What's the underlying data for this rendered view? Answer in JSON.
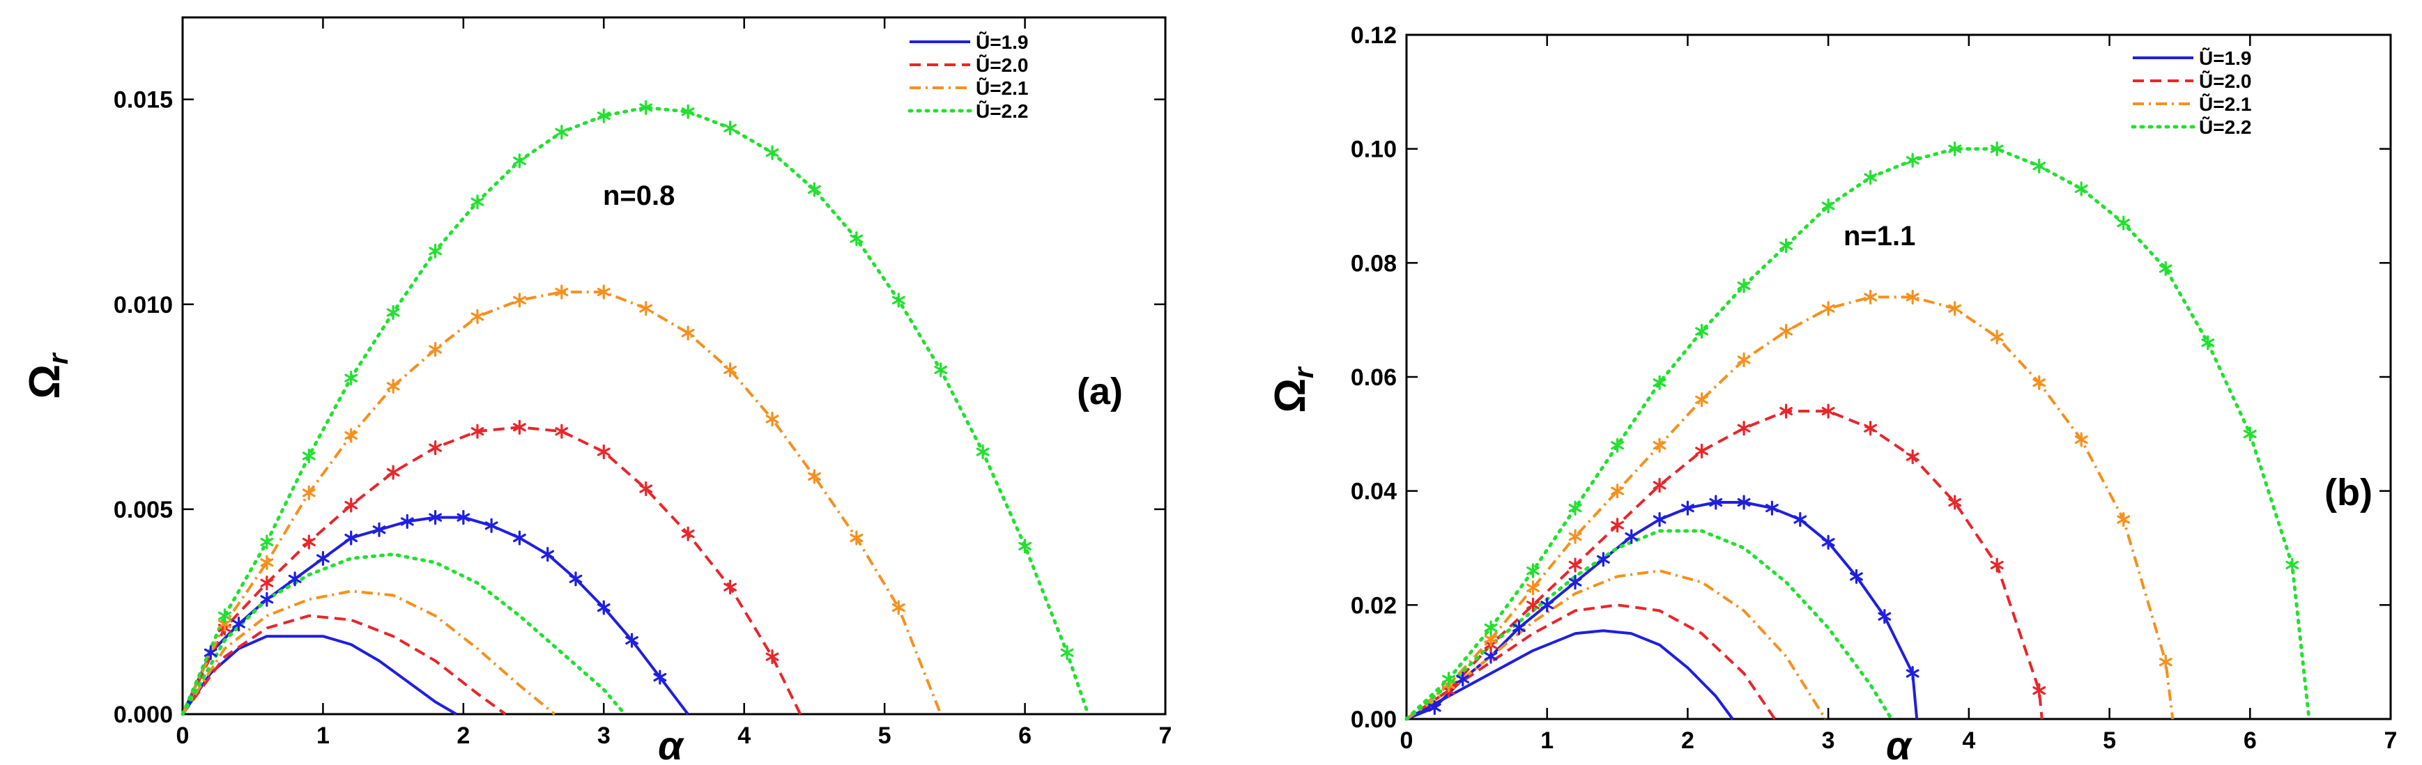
{
  "chart_data": [
    {
      "type": "line",
      "panel_label": "(a)",
      "annotation": "n=0.8",
      "xlabel": "α",
      "ylabel": "Ω",
      "ylabel_sub": "r",
      "xlim": [
        0,
        7
      ],
      "ylim": [
        0,
        0.017
      ],
      "xticks": [
        0,
        1,
        2,
        3,
        4,
        5,
        6,
        7
      ],
      "yticks": [
        0.0,
        0.005,
        0.01,
        0.015
      ],
      "ytick_labels": [
        "0.000",
        "0.005",
        "0.010",
        "0.015"
      ],
      "legend": [
        {
          "label": "Ũ=1.9",
          "color": "#1f1fe0",
          "style": "solid"
        },
        {
          "label": "Ũ=2.0",
          "color": "#e8262b",
          "style": "dashed"
        },
        {
          "label": "Ũ=2.1",
          "color": "#f5901e",
          "style": "dashdot"
        },
        {
          "label": "Ũ=2.2",
          "color": "#22e030",
          "style": "dotted"
        }
      ],
      "series": [
        {
          "name": "Ũ=1.9 upper",
          "color": "#1f1fe0",
          "style": "solid",
          "markers": true,
          "x": [
            0.0,
            0.2,
            0.4,
            0.6,
            0.8,
            1.0,
            1.2,
            1.4,
            1.6,
            1.8,
            2.0,
            2.2,
            2.4,
            2.6,
            2.8,
            3.0,
            3.2,
            3.4,
            3.6
          ],
          "y": [
            0.0,
            0.0015,
            0.0022,
            0.0028,
            0.0033,
            0.0038,
            0.0043,
            0.0045,
            0.0047,
            0.0048,
            0.0048,
            0.0046,
            0.0043,
            0.0039,
            0.0033,
            0.0026,
            0.0018,
            0.0009,
            0.0
          ]
        },
        {
          "name": "Ũ=2.0 upper",
          "color": "#e8262b",
          "style": "dashed",
          "markers": true,
          "x": [
            0.0,
            0.3,
            0.6,
            0.9,
            1.2,
            1.5,
            1.8,
            2.1,
            2.4,
            2.7,
            3.0,
            3.3,
            3.6,
            3.9,
            4.2,
            4.4
          ],
          "y": [
            0.0,
            0.0021,
            0.0032,
            0.0042,
            0.0051,
            0.0059,
            0.0065,
            0.0069,
            0.007,
            0.0069,
            0.0064,
            0.0055,
            0.0044,
            0.0031,
            0.0014,
            0.0
          ]
        },
        {
          "name": "Ũ=2.1 upper",
          "color": "#f5901e",
          "style": "dashdot",
          "markers": true,
          "x": [
            0.0,
            0.3,
            0.6,
            0.9,
            1.2,
            1.5,
            1.8,
            2.1,
            2.4,
            2.7,
            3.0,
            3.3,
            3.6,
            3.9,
            4.2,
            4.5,
            4.8,
            5.1,
            5.4
          ],
          "y": [
            0.0,
            0.0022,
            0.0037,
            0.0054,
            0.0068,
            0.008,
            0.0089,
            0.0097,
            0.0101,
            0.0103,
            0.0103,
            0.0099,
            0.0093,
            0.0084,
            0.0072,
            0.0058,
            0.0043,
            0.0026,
            0.0
          ]
        },
        {
          "name": "Ũ=2.2 upper",
          "color": "#22e030",
          "style": "dotted",
          "markers": true,
          "x": [
            0.0,
            0.3,
            0.6,
            0.9,
            1.2,
            1.5,
            1.8,
            2.1,
            2.4,
            2.7,
            3.0,
            3.3,
            3.6,
            3.9,
            4.2,
            4.5,
            4.8,
            5.1,
            5.4,
            5.7,
            6.0,
            6.3,
            6.45
          ],
          "y": [
            0.0,
            0.0024,
            0.0042,
            0.0063,
            0.0082,
            0.0098,
            0.0113,
            0.0125,
            0.0135,
            0.0142,
            0.0146,
            0.0148,
            0.0147,
            0.0143,
            0.0137,
            0.0128,
            0.0116,
            0.0101,
            0.0084,
            0.0064,
            0.0041,
            0.0015,
            0.0
          ]
        },
        {
          "name": "Ũ=1.9 lower",
          "color": "#1f1fe0",
          "style": "solid",
          "markers": false,
          "x": [
            0.0,
            0.2,
            0.4,
            0.6,
            0.8,
            1.0,
            1.2,
            1.4,
            1.6,
            1.8,
            1.95
          ],
          "y": [
            0.0,
            0.001,
            0.0016,
            0.0019,
            0.0019,
            0.0019,
            0.0017,
            0.0013,
            0.0008,
            0.0003,
            0.0
          ]
        },
        {
          "name": "Ũ=2.0 lower",
          "color": "#e8262b",
          "style": "dashed",
          "markers": false,
          "x": [
            0.0,
            0.3,
            0.6,
            0.9,
            1.2,
            1.5,
            1.8,
            2.1,
            2.3
          ],
          "y": [
            0.0,
            0.0014,
            0.0021,
            0.0024,
            0.0023,
            0.0019,
            0.0013,
            0.0005,
            0.0
          ]
        },
        {
          "name": "Ũ=2.1 lower",
          "color": "#f5901e",
          "style": "dashdot",
          "markers": false,
          "x": [
            0.0,
            0.3,
            0.6,
            0.9,
            1.2,
            1.5,
            1.8,
            2.1,
            2.4,
            2.65
          ],
          "y": [
            0.0,
            0.0016,
            0.0024,
            0.0028,
            0.003,
            0.0029,
            0.0024,
            0.0016,
            0.0007,
            0.0
          ]
        },
        {
          "name": "Ũ=2.2 lower",
          "color": "#22e030",
          "style": "dotted",
          "markers": false,
          "x": [
            0.0,
            0.3,
            0.6,
            0.9,
            1.2,
            1.5,
            1.8,
            2.1,
            2.4,
            2.7,
            3.0,
            3.15
          ],
          "y": [
            0.0,
            0.0018,
            0.0028,
            0.0034,
            0.0038,
            0.0039,
            0.0037,
            0.0032,
            0.0024,
            0.0015,
            0.0006,
            0.0
          ]
        }
      ]
    },
    {
      "type": "line",
      "panel_label": "(b)",
      "annotation": "n=1.1",
      "xlabel": "α",
      "ylabel": "Ω",
      "ylabel_sub": "r",
      "xlim": [
        0,
        7
      ],
      "ylim": [
        0,
        0.12
      ],
      "xticks": [
        0,
        1,
        2,
        3,
        4,
        5,
        6,
        7
      ],
      "yticks": [
        0.0,
        0.02,
        0.04,
        0.06,
        0.08,
        0.1,
        0.12
      ],
      "ytick_labels": [
        "0.00",
        "0.02",
        "0.04",
        "0.06",
        "0.08",
        "0.10",
        "0.12"
      ],
      "legend": [
        {
          "label": "Ũ=1.9",
          "color": "#1f1fe0",
          "style": "solid"
        },
        {
          "label": "Ũ=2.0",
          "color": "#e8262b",
          "style": "dashed"
        },
        {
          "label": "Ũ=2.1",
          "color": "#f5901e",
          "style": "dashdot"
        },
        {
          "label": "Ũ=2.2",
          "color": "#22e030",
          "style": "dotted"
        }
      ],
      "series": [
        {
          "name": "Ũ=1.9 upper",
          "color": "#1f1fe0",
          "style": "solid",
          "markers": true,
          "x": [
            0.0,
            0.2,
            0.4,
            0.6,
            0.8,
            1.0,
            1.2,
            1.4,
            1.6,
            1.8,
            2.0,
            2.2,
            2.4,
            2.6,
            2.8,
            3.0,
            3.2,
            3.4,
            3.6,
            3.63
          ],
          "y": [
            0.0,
            0.002,
            0.007,
            0.011,
            0.016,
            0.02,
            0.024,
            0.028,
            0.032,
            0.035,
            0.037,
            0.038,
            0.038,
            0.037,
            0.035,
            0.031,
            0.025,
            0.018,
            0.008,
            0.0
          ]
        },
        {
          "name": "Ũ=2.0 upper",
          "color": "#e8262b",
          "style": "dashed",
          "markers": true,
          "x": [
            0.0,
            0.3,
            0.6,
            0.9,
            1.2,
            1.5,
            1.8,
            2.1,
            2.4,
            2.7,
            3.0,
            3.3,
            3.6,
            3.9,
            4.2,
            4.5,
            4.52
          ],
          "y": [
            0.0,
            0.005,
            0.013,
            0.02,
            0.027,
            0.034,
            0.041,
            0.047,
            0.051,
            0.054,
            0.054,
            0.051,
            0.046,
            0.038,
            0.027,
            0.005,
            0.0
          ]
        },
        {
          "name": "Ũ=2.1 upper",
          "color": "#f5901e",
          "style": "dashdot",
          "markers": true,
          "x": [
            0.0,
            0.3,
            0.6,
            0.9,
            1.2,
            1.5,
            1.8,
            2.1,
            2.4,
            2.7,
            3.0,
            3.3,
            3.6,
            3.9,
            4.2,
            4.5,
            4.8,
            5.1,
            5.4,
            5.45
          ],
          "y": [
            0.0,
            0.006,
            0.014,
            0.023,
            0.032,
            0.04,
            0.048,
            0.056,
            0.063,
            0.068,
            0.072,
            0.074,
            0.074,
            0.072,
            0.067,
            0.059,
            0.049,
            0.035,
            0.01,
            0.0
          ]
        },
        {
          "name": "Ũ=2.2 upper",
          "color": "#22e030",
          "style": "dotted",
          "markers": true,
          "x": [
            0.0,
            0.3,
            0.6,
            0.9,
            1.2,
            1.5,
            1.8,
            2.1,
            2.4,
            2.7,
            3.0,
            3.3,
            3.6,
            3.9,
            4.2,
            4.5,
            4.8,
            5.1,
            5.4,
            5.7,
            6.0,
            6.3,
            6.42
          ],
          "y": [
            0.0,
            0.007,
            0.016,
            0.026,
            0.037,
            0.048,
            0.059,
            0.068,
            0.076,
            0.083,
            0.09,
            0.095,
            0.098,
            0.1,
            0.1,
            0.097,
            0.093,
            0.087,
            0.079,
            0.066,
            0.05,
            0.027,
            0.0
          ]
        },
        {
          "name": "Ũ=1.9 lower",
          "color": "#1f1fe0",
          "style": "solid",
          "markers": false,
          "x": [
            0.0,
            0.3,
            0.6,
            0.9,
            1.2,
            1.4,
            1.6,
            1.8,
            2.0,
            2.2,
            2.32
          ],
          "y": [
            0.0,
            0.004,
            0.008,
            0.012,
            0.015,
            0.0155,
            0.015,
            0.013,
            0.009,
            0.004,
            0.0
          ]
        },
        {
          "name": "Ũ=2.0 lower",
          "color": "#e8262b",
          "style": "dashed",
          "markers": false,
          "x": [
            0.0,
            0.3,
            0.6,
            0.9,
            1.2,
            1.5,
            1.8,
            2.1,
            2.4,
            2.62
          ],
          "y": [
            0.0,
            0.005,
            0.01,
            0.015,
            0.019,
            0.02,
            0.019,
            0.015,
            0.008,
            0.0
          ]
        },
        {
          "name": "Ũ=2.1 lower",
          "color": "#f5901e",
          "style": "dashdot",
          "markers": false,
          "x": [
            0.0,
            0.3,
            0.6,
            0.9,
            1.2,
            1.5,
            1.8,
            2.1,
            2.4,
            2.7,
            2.98
          ],
          "y": [
            0.0,
            0.005,
            0.011,
            0.017,
            0.022,
            0.025,
            0.026,
            0.024,
            0.019,
            0.011,
            0.0
          ]
        },
        {
          "name": "Ũ=2.2 lower",
          "color": "#22e030",
          "style": "dotted",
          "markers": false,
          "x": [
            0.0,
            0.3,
            0.6,
            0.9,
            1.2,
            1.5,
            1.8,
            2.1,
            2.4,
            2.7,
            3.0,
            3.3,
            3.45
          ],
          "y": [
            0.0,
            0.006,
            0.013,
            0.019,
            0.025,
            0.03,
            0.033,
            0.033,
            0.03,
            0.024,
            0.016,
            0.006,
            0.0
          ]
        }
      ]
    }
  ]
}
